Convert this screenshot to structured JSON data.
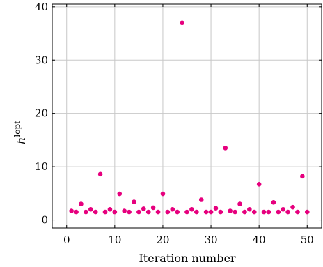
{
  "chart_data": {
    "type": "scatter",
    "title": "",
    "xlabel": "Iteration number",
    "ylabel": "h",
    "ylabel_superscript": "lopt",
    "xlim": [
      -3,
      53
    ],
    "ylim": [
      -1.5,
      40.5
    ],
    "xticks": [
      0,
      10,
      20,
      30,
      40,
      50
    ],
    "yticks": [
      0,
      10,
      20,
      30,
      40
    ],
    "grid": true,
    "marker_color": "#e6007e",
    "series": [
      {
        "x": [
          1,
          2,
          3,
          4,
          5,
          6,
          7,
          8,
          9,
          10,
          11,
          12,
          13,
          14,
          15,
          16,
          17,
          18,
          19,
          20,
          21,
          22,
          23,
          24,
          25,
          26,
          27,
          28,
          29,
          30,
          31,
          32,
          33,
          34,
          35,
          36,
          37,
          38,
          39,
          40,
          41,
          42,
          43,
          44,
          45,
          46,
          47,
          48,
          49,
          50
        ],
        "y": [
          1.7,
          1.5,
          3.0,
          1.5,
          2.0,
          1.5,
          8.6,
          1.5,
          2.0,
          1.5,
          4.9,
          1.7,
          1.5,
          3.4,
          1.5,
          2.1,
          1.5,
          2.3,
          1.5,
          4.9,
          1.5,
          2.0,
          1.5,
          37.0,
          1.5,
          2.0,
          1.5,
          3.8,
          1.5,
          1.5,
          2.2,
          1.5,
          13.5,
          1.7,
          1.5,
          3.0,
          1.5,
          2.0,
          1.5,
          6.7,
          1.5,
          1.5,
          3.3,
          1.5,
          2.0,
          1.5,
          2.4,
          1.5,
          8.2,
          1.5
        ]
      }
    ]
  }
}
